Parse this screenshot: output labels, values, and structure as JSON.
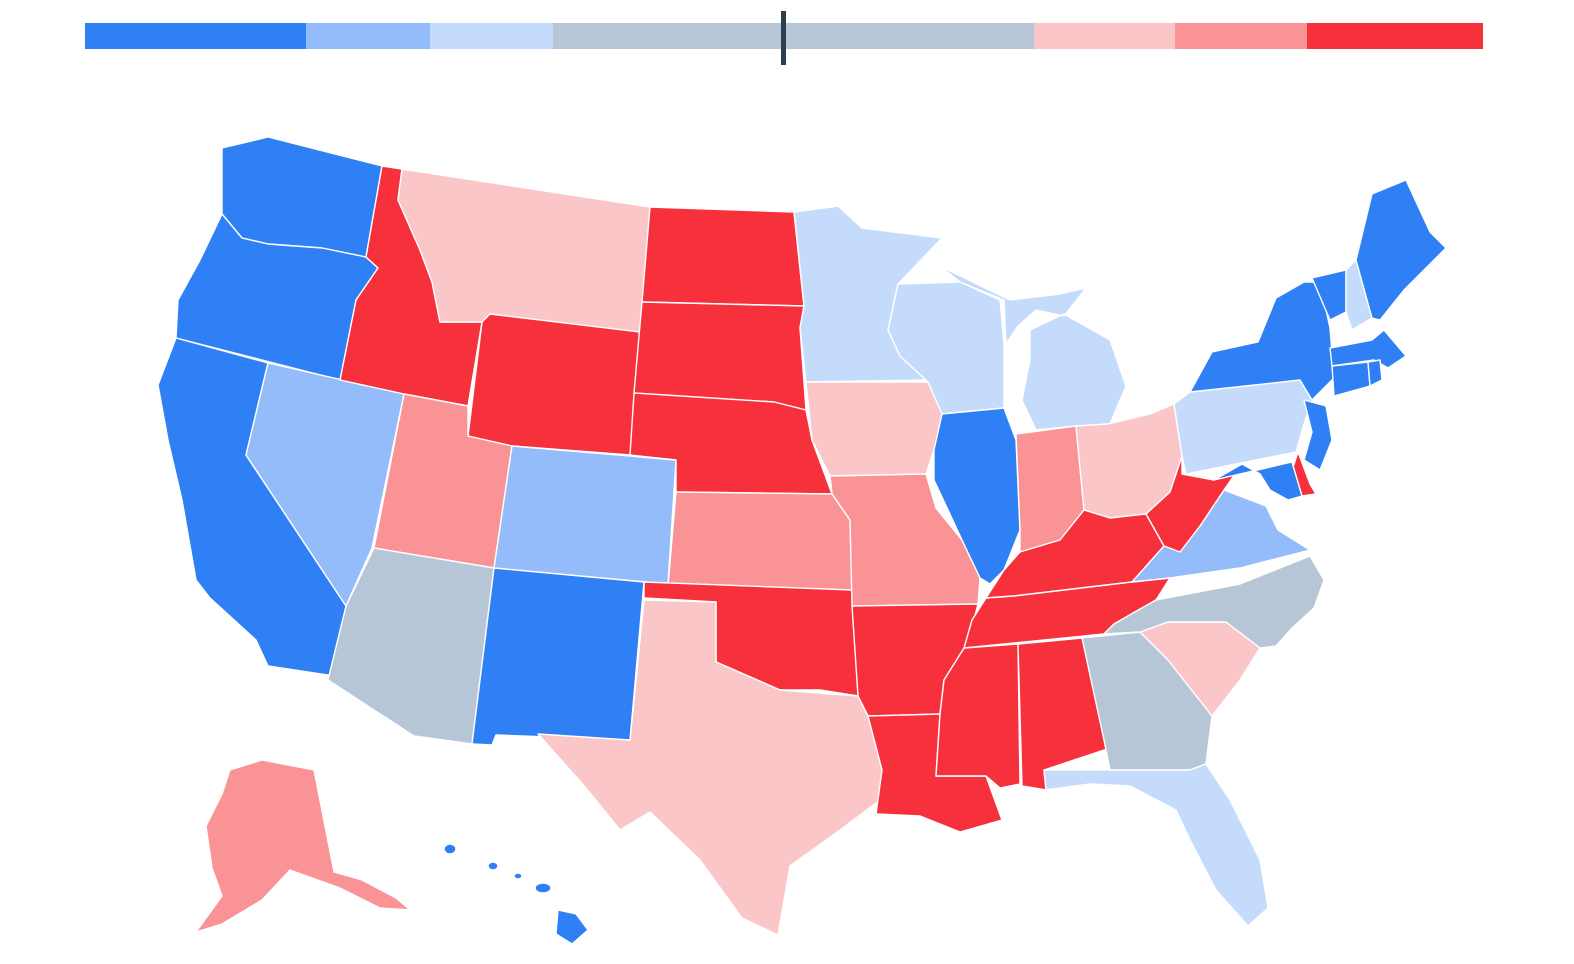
{
  "legend": {
    "segments": [
      {
        "category": "solid-d",
        "color": "#2f7ff5"
      },
      {
        "category": "likely-d",
        "color": "#94bcfa"
      },
      {
        "category": "lean-d",
        "color": "#c5dbfb"
      },
      {
        "category": "tossup",
        "color": "#b6c6d6"
      },
      {
        "category": "lean-r",
        "color": "#fbc6c8"
      },
      {
        "category": "likely-r",
        "color": "#f99395"
      },
      {
        "category": "solid-r",
        "color": "#f7313b"
      }
    ],
    "marker_color": "#2c3e50"
  },
  "colors": {
    "solid-d": "#2f7ff5",
    "likely-d": "#94bcfa",
    "lean-d": "#c5dbfb",
    "tossup": "#b6c6d6",
    "lean-r": "#fbc6c8",
    "likely-r": "#f99395",
    "solid-r": "#f7313b"
  },
  "states": {
    "WA": "solid-d",
    "OR": "solid-d",
    "CA": "solid-d",
    "NV": "likely-d",
    "ID": "solid-r",
    "MT": "lean-r",
    "WY": "solid-r",
    "UT": "likely-r",
    "AZ": "tossup",
    "CO": "likely-d",
    "NM": "solid-d",
    "ND": "solid-r",
    "SD": "solid-r",
    "NE": "solid-r",
    "KS": "likely-r",
    "OK": "solid-r",
    "TX": "lean-r",
    "MN": "lean-d",
    "IA": "lean-r",
    "MO": "likely-r",
    "AR": "solid-r",
    "LA": "solid-r",
    "WI": "lean-d",
    "IL": "solid-d",
    "MI": "lean-d",
    "IN": "likely-r",
    "OH": "lean-r",
    "KY": "solid-r",
    "TN": "solid-r",
    "MS": "solid-r",
    "AL": "solid-r",
    "GA": "tossup",
    "FL": "lean-d",
    "SC": "lean-r",
    "NC": "tossup",
    "VA": "likely-d",
    "WV": "solid-r",
    "PA": "lean-d",
    "NY": "solid-d",
    "VT": "solid-d",
    "NH": "lean-d",
    "ME": "solid-d",
    "MA": "solid-d",
    "CT": "solid-d",
    "RI": "solid-d",
    "NJ": "solid-d",
    "DE": "solid-r",
    "MD": "solid-d",
    "AK": "likely-r",
    "HI": "solid-d"
  }
}
